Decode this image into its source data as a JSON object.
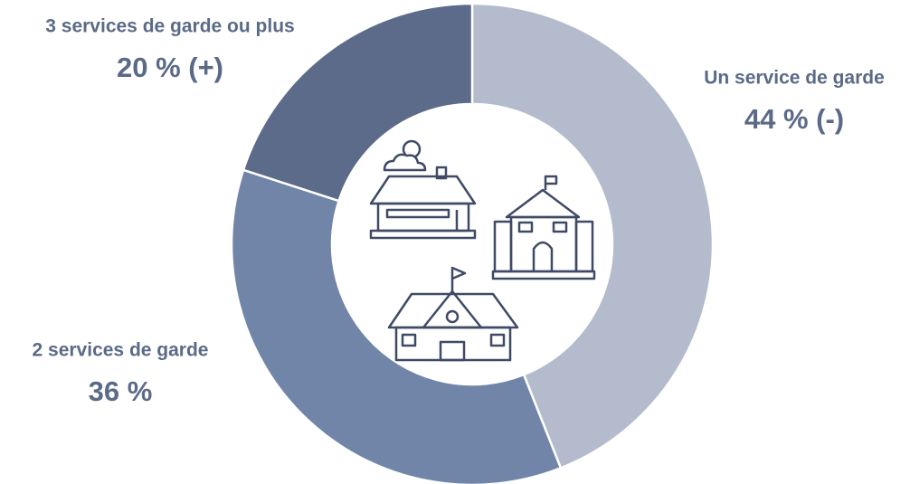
{
  "chart_data": {
    "type": "donut",
    "categories": [
      "Un service de garde",
      "2 services de garde",
      "3 services de garde ou plus"
    ],
    "values": [
      44,
      36,
      20
    ],
    "value_labels": [
      "44 % (-)",
      "36 %",
      "20 % (+)"
    ],
    "colors": [
      "#b3bbcc",
      "#7185a9",
      "#5c6b8a"
    ]
  }
}
